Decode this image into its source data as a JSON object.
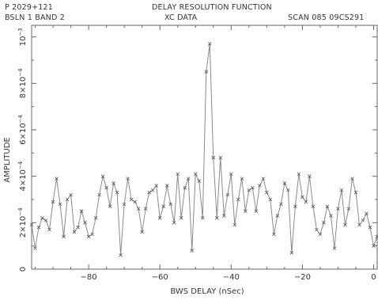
{
  "header": {
    "source": "P 2029+121",
    "title": "DELAY RESOLUTION FUNCTION",
    "baseline": "BSLN 1   BAND 2",
    "data_type": "XC DATA",
    "scan": "SCAN 085   09CS291"
  },
  "chart_data": {
    "type": "line",
    "xlabel": "BWS DELAY (nSec)",
    "ylabel": "AMPLITUDE",
    "xlim": [
      -96,
      1
    ],
    "ylim": [
      0,
      0.00105
    ],
    "x_ticks": [
      {
        "value": -80,
        "label": "−80"
      },
      {
        "value": -60,
        "label": "−60"
      },
      {
        "value": -40,
        "label": "−40"
      },
      {
        "value": -20,
        "label": "−20"
      },
      {
        "value": 0,
        "label": "0"
      }
    ],
    "y_ticks": [
      {
        "value": 0,
        "mant": "0",
        "exp": ""
      },
      {
        "value": 0.0002,
        "mant": "2×10",
        "exp": "−4"
      },
      {
        "value": 0.0004,
        "mant": "4×10",
        "exp": "−4"
      },
      {
        "value": 0.0006,
        "mant": "6×10",
        "exp": "−4"
      },
      {
        "value": 0.0008,
        "mant": "8×10",
        "exp": "−4"
      },
      {
        "value": 0.001,
        "mant": "10",
        "exp": "−3"
      }
    ],
    "series": [
      {
        "x": [
          -96,
          -95,
          -94,
          -93,
          -92,
          -91,
          -90,
          -89,
          -88,
          -87,
          -86,
          -85,
          -84,
          -83,
          -82,
          -81,
          -80,
          -79,
          -78,
          -77,
          -76,
          -75,
          -74,
          -73,
          -72,
          -71,
          -70,
          -69,
          -68,
          -67,
          -66,
          -65,
          -64,
          -63,
          -62,
          -61,
          -60,
          -59,
          -58,
          -57,
          -56,
          -55,
          -54,
          -53,
          -52,
          -51,
          -50,
          -49,
          -48,
          -47,
          -46,
          -45,
          -44,
          -43,
          -42,
          -41,
          -40,
          -39,
          -38,
          -37,
          -36,
          -35,
          -34,
          -33,
          -32,
          -31,
          -30,
          -29,
          -28,
          -27,
          -26,
          -25,
          -24,
          -23,
          -22,
          -21,
          -20,
          -19,
          -18,
          -17,
          -16,
          -15,
          -14,
          -13,
          -12,
          -11,
          -10,
          -9,
          -8,
          -7,
          -6,
          -5,
          -4,
          -3,
          -2,
          -1,
          0,
          1
        ],
        "values": [
          0.00019,
          9e-05,
          0.00018,
          0.00022,
          0.00021,
          0.00017,
          0.00029,
          0.00039,
          0.00028,
          0.00014,
          0.0003,
          0.00032,
          0.00016,
          0.00018,
          0.00025,
          0.0002,
          0.00014,
          0.00015,
          0.00022,
          0.00032,
          0.0004,
          0.00035,
          0.00027,
          0.00037,
          0.00033,
          6e-05,
          0.00028,
          0.00039,
          0.0003,
          0.00029,
          0.00026,
          0.00016,
          0.00026,
          0.00033,
          0.00034,
          0.00036,
          0.00022,
          0.00027,
          0.00036,
          0.00028,
          0.0002,
          0.00041,
          0.00022,
          0.00035,
          0.00039,
          8e-05,
          0.00041,
          0.00038,
          0.00022,
          0.00085,
          0.00097,
          0.00048,
          0.00022,
          0.00048,
          0.00023,
          0.00032,
          0.00041,
          0.00019,
          0.0003,
          0.00039,
          0.00025,
          0.00034,
          0.00035,
          0.00025,
          0.00036,
          0.00039,
          0.00033,
          0.0003,
          0.00015,
          0.00023,
          0.00028,
          0.00037,
          0.00034,
          7e-05,
          0.00027,
          0.00041,
          0.00031,
          0.00029,
          0.0004,
          0.00027,
          0.00017,
          0.00015,
          0.0002,
          0.00027,
          0.00023,
          9e-05,
          0.00026,
          0.00034,
          0.00019,
          0.00026,
          0.00039,
          0.00033,
          0.00019,
          0.00021,
          0.00024,
          0.00018,
          0.0001,
          0.00014
        ]
      }
    ]
  }
}
